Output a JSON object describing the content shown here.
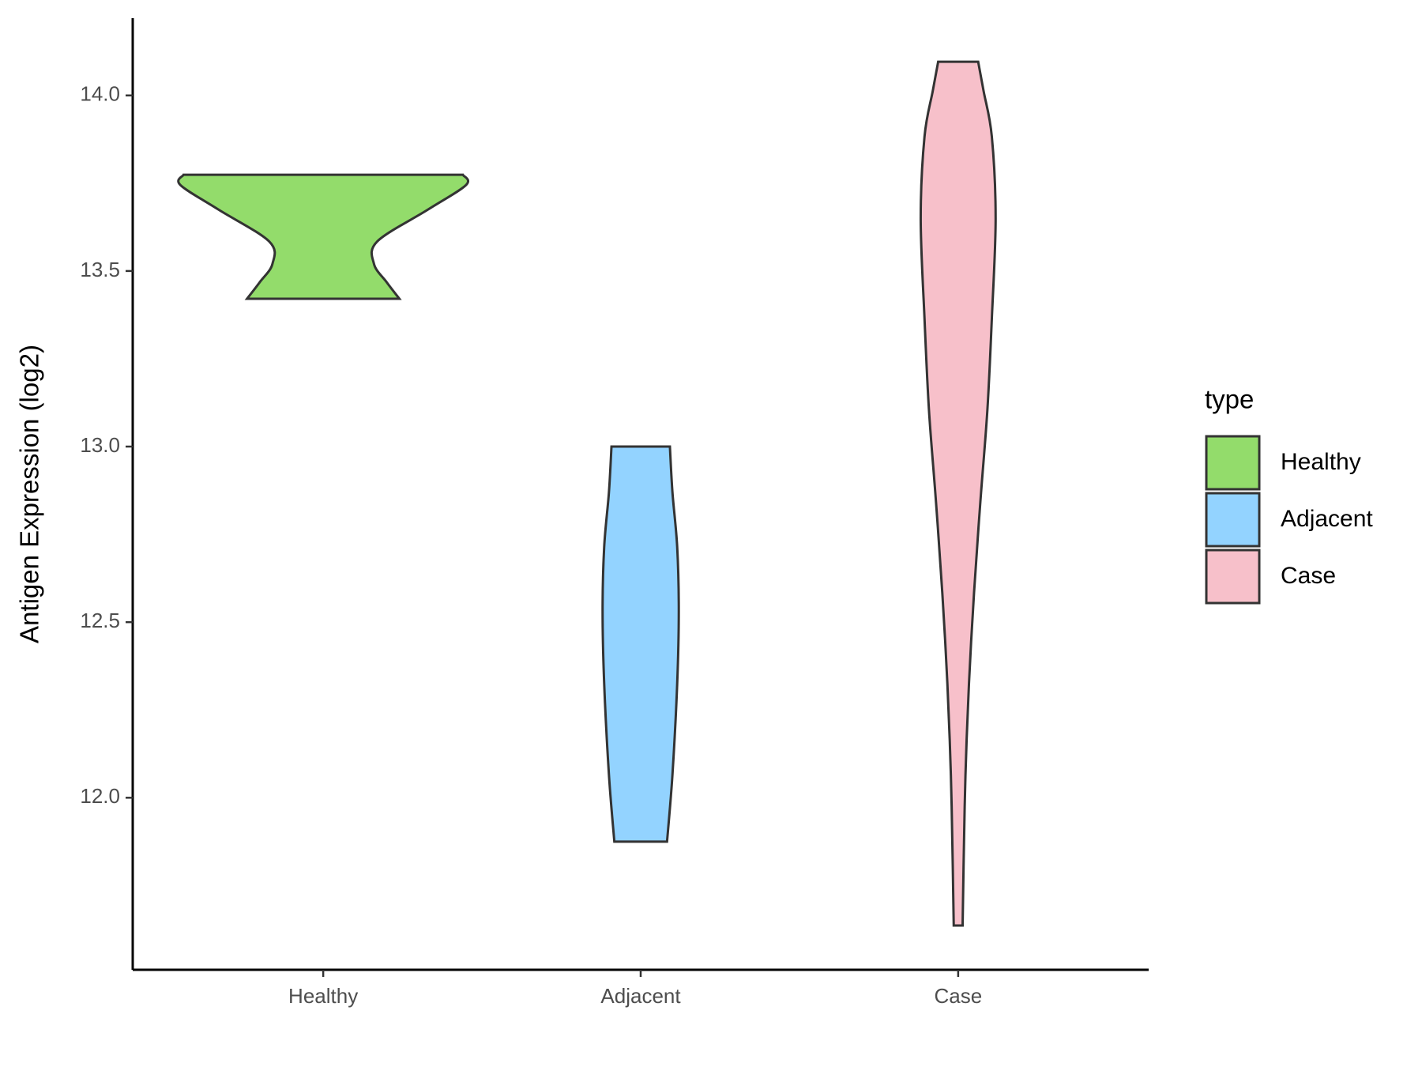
{
  "chart_data": {
    "type": "violin",
    "y_label": "Antigen Expression (log2)",
    "legend_title": "type",
    "legend": "right",
    "categories": [
      "Healthy",
      "Adjacent",
      "Case"
    ],
    "ylim": [
      11.51,
      14.22
    ],
    "yticks": [
      {
        "value": 12,
        "label": "12.0"
      },
      {
        "value": 12.5,
        "label": "12.5"
      },
      {
        "value": 13,
        "label": "13.0"
      },
      {
        "value": 13.5,
        "label": "13.5"
      },
      {
        "value": 14,
        "label": "14.0"
      }
    ],
    "series": [
      {
        "name": "Healthy",
        "color": "#93dc6b",
        "y": [
          13.421,
          13.468,
          13.52,
          13.584,
          13.675,
          13.745,
          13.774
        ],
        "width": [
          0.24,
          0.2,
          0.16,
          0.17,
          0.33,
          0.45,
          0.44
        ]
      },
      {
        "name": "Adjacent",
        "color": "#93d3ff",
        "y": [
          11.875,
          12.065,
          12.325,
          12.532,
          12.714,
          12.87,
          13.0
        ],
        "width": [
          0.083,
          0.1,
          0.115,
          0.12,
          0.115,
          0.1,
          0.092
        ]
      },
      {
        "name": "Case",
        "color": "#f7c0ca",
        "y": [
          11.636,
          11.805,
          12.065,
          12.325,
          12.584,
          12.844,
          13.104,
          13.364,
          13.65,
          13.883,
          14.013,
          14.096
        ],
        "width": [
          0.014,
          0.017,
          0.023,
          0.034,
          0.05,
          0.07,
          0.092,
          0.106,
          0.118,
          0.106,
          0.08,
          0.063
        ]
      }
    ]
  }
}
